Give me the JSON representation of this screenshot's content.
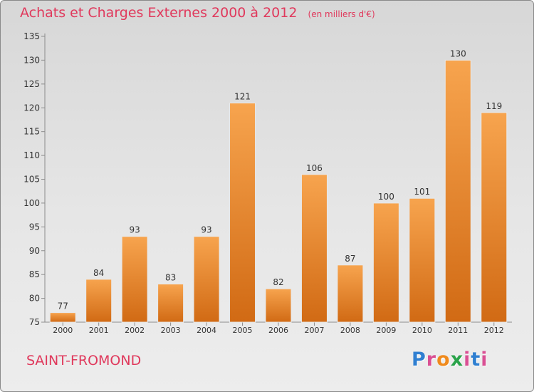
{
  "title": "Achats et Charges Externes 2000 à 2012",
  "subtitle": "(en milliers d'€)",
  "city": "SAINT-FROMOND",
  "logo": {
    "letters": [
      "P",
      "r",
      "o",
      "x",
      "i",
      "t",
      "i"
    ],
    "colors": [
      "#2f7fd1",
      "#d94f93",
      "#f08a1c",
      "#2aa34a",
      "#d94f93",
      "#2f7fd1",
      "#d94f93"
    ]
  },
  "colors": {
    "bar_top": "#f7a44e",
    "bar_bottom": "#d16a14",
    "accent": "#e0395c"
  },
  "chart_data": {
    "type": "bar",
    "categories": [
      "2000",
      "2001",
      "2002",
      "2003",
      "2004",
      "2005",
      "2006",
      "2007",
      "2008",
      "2009",
      "2010",
      "2011",
      "2012"
    ],
    "values": [
      77,
      84,
      93,
      83,
      93,
      121,
      82,
      106,
      87,
      100,
      101,
      130,
      119
    ],
    "ylim": [
      75,
      135
    ],
    "yticks": [
      75,
      80,
      85,
      90,
      95,
      100,
      105,
      110,
      115,
      120,
      125,
      130,
      135
    ],
    "grid": false,
    "legend": "none"
  }
}
